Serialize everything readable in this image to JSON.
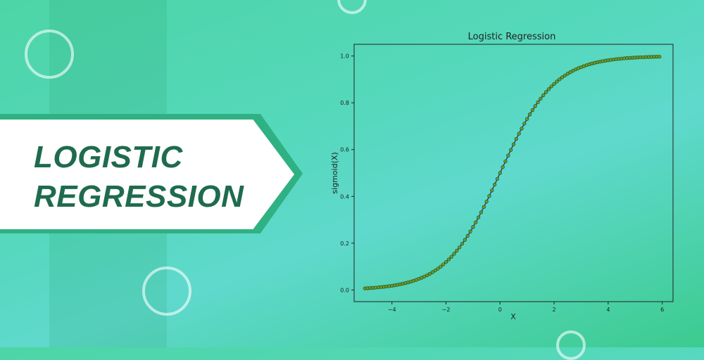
{
  "banner": {
    "line1": "LOGISTIC",
    "line2": "REGRESSION"
  },
  "colors": {
    "banner_text": "#1f6b4e",
    "curve": "#1f4e9b",
    "point_fill": "#6b9a2a",
    "point_edge": "#1a3a10"
  },
  "chart_data": {
    "type": "scatter",
    "title": "Logistic Regression",
    "xlabel": "X",
    "ylabel": "sigmoid(X)",
    "xlim": [
      -5.4,
      6.4
    ],
    "ylim": [
      -0.05,
      1.05
    ],
    "x_ticks": [
      -4,
      -2,
      0,
      2,
      4,
      6
    ],
    "x_tick_labels": [
      "−4",
      "−2",
      "0",
      "2",
      "4",
      "6"
    ],
    "y_ticks": [
      0.0,
      0.2,
      0.4,
      0.6,
      0.8,
      1.0
    ],
    "y_tick_labels": [
      "0.0",
      "0.2",
      "0.4",
      "0.6",
      "0.8",
      "1.0"
    ],
    "grid": false,
    "series": [
      {
        "name": "",
        "kind": "line+markers",
        "function": "sigmoid",
        "x_start": -5,
        "x_end": 6,
        "x_step": 0.1
      }
    ]
  }
}
